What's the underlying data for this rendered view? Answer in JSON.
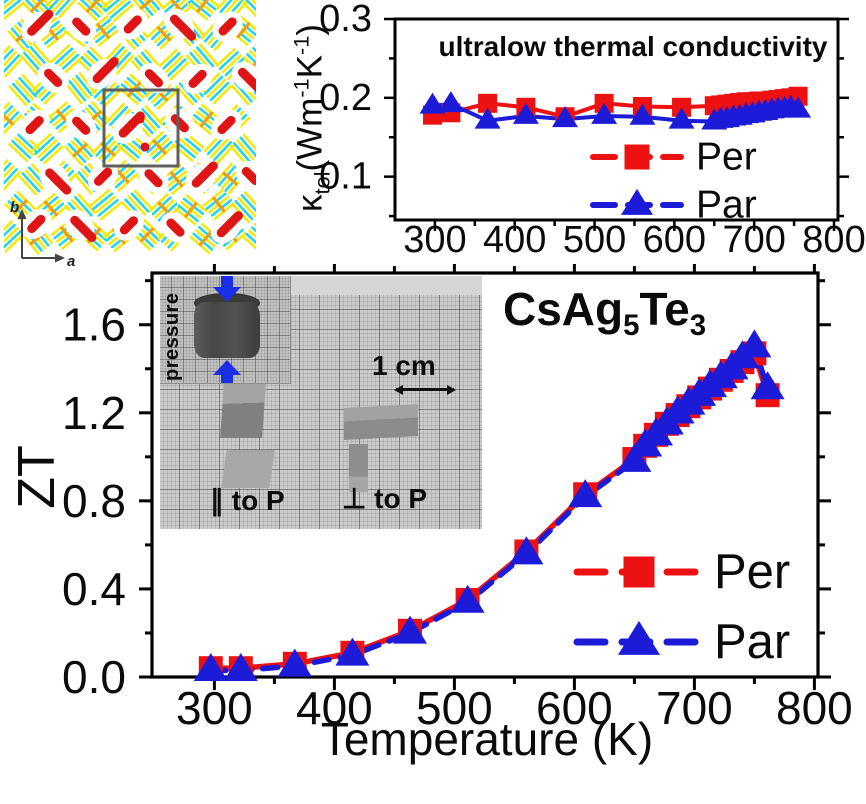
{
  "panels": {
    "crystal": {
      "axis_a_label": "a",
      "axis_b_label": "b",
      "colors": {
        "cyan": "#25d6e0",
        "yellow": "#f2ea0a",
        "orange": "#ef9c15",
        "red": "#df1414",
        "cell_outline": "#5f5f5f"
      }
    },
    "inset_photo": {
      "pressure_label": "pressure",
      "scale_label": "1 cm",
      "parallel_label": "∥ to P",
      "perpendicular_label": "⊥ to P",
      "arrow_color": "#1b2fe4"
    }
  },
  "chart_data": [
    {
      "id": "kappa",
      "type": "line",
      "title": "ultralow thermal conductivity",
      "ylabel_parts": {
        "kappa": "κ",
        "kappa_sub": "tol",
        "open": "(Wm",
        "sup1": "-1",
        "k": "K",
        "sup2": "-1",
        "close": ")"
      },
      "xlabel": "",
      "xlim": [
        250,
        805
      ],
      "ylim": [
        0.045,
        0.3
      ],
      "xtick_values": [
        300,
        400,
        500,
        600,
        700,
        800
      ],
      "xtick_labels": [
        "300",
        "400",
        "500",
        "600",
        "700",
        "800"
      ],
      "ytick_values": [
        0.1,
        0.2,
        0.3
      ],
      "ytick_labels": [
        "0.1",
        "0.2",
        "0.3"
      ],
      "legend_position": "lower right",
      "grid": false,
      "x": [
        297,
        320,
        366,
        414,
        463,
        512,
        560,
        609,
        650,
        658,
        666,
        674,
        682,
        690,
        698,
        706,
        714,
        722,
        730,
        738,
        746,
        755
      ],
      "series": [
        {
          "name": "Per",
          "marker": "square",
          "color": "#ee1111",
          "values": [
            0.178,
            0.181,
            0.193,
            0.188,
            0.176,
            0.193,
            0.189,
            0.188,
            0.19,
            0.191,
            0.192,
            0.193,
            0.194,
            0.195,
            0.195,
            0.196,
            0.196,
            0.197,
            0.198,
            0.199,
            0.2,
            0.202
          ]
        },
        {
          "name": "Par",
          "marker": "triangle",
          "color": "#1b1bd8",
          "values": [
            0.19,
            0.192,
            0.171,
            0.177,
            0.173,
            0.177,
            0.176,
            0.171,
            0.17,
            0.172,
            0.173,
            0.175,
            0.176,
            0.178,
            0.179,
            0.181,
            0.182,
            0.184,
            0.185,
            0.186,
            0.187,
            0.185
          ]
        }
      ]
    },
    {
      "id": "zt",
      "type": "line",
      "title": "",
      "annotation_parts": {
        "p1": "CsAg",
        "s1": "5",
        "p2": "Te",
        "s2": "3"
      },
      "ylabel": "ZT",
      "xlabel": "Temperature (K)",
      "xlim": [
        248,
        803
      ],
      "ylim": [
        0,
        1.835
      ],
      "xtick_values": [
        300,
        400,
        500,
        600,
        700,
        800
      ],
      "xtick_labels": [
        "300",
        "400",
        "500",
        "600",
        "700",
        "800"
      ],
      "ytick_values": [
        0.0,
        0.4,
        0.8,
        1.2,
        1.6
      ],
      "ytick_labels": [
        "0.0",
        "0.4",
        "0.8",
        "1.2",
        "1.6"
      ],
      "legend_position": "lower right",
      "grid": false,
      "x": [
        297,
        322,
        367,
        415,
        463,
        511,
        560,
        609,
        650,
        659,
        668,
        677,
        686,
        695,
        704,
        713,
        722,
        731,
        740,
        750,
        761
      ],
      "series": [
        {
          "name": "Per",
          "marker": "square",
          "color": "#ee1111",
          "values": [
            0.04,
            0.04,
            0.06,
            0.11,
            0.21,
            0.35,
            0.57,
            0.83,
            0.99,
            1.05,
            1.1,
            1.15,
            1.19,
            1.23,
            1.27,
            1.31,
            1.35,
            1.39,
            1.43,
            1.47,
            1.28
          ]
        },
        {
          "name": "Par",
          "marker": "triangle",
          "color": "#1b1bd8",
          "values": [
            0.03,
            0.03,
            0.05,
            0.1,
            0.2,
            0.34,
            0.56,
            0.82,
            0.98,
            1.05,
            1.1,
            1.15,
            1.2,
            1.24,
            1.28,
            1.32,
            1.36,
            1.4,
            1.45,
            1.5,
            1.31
          ]
        }
      ]
    }
  ]
}
